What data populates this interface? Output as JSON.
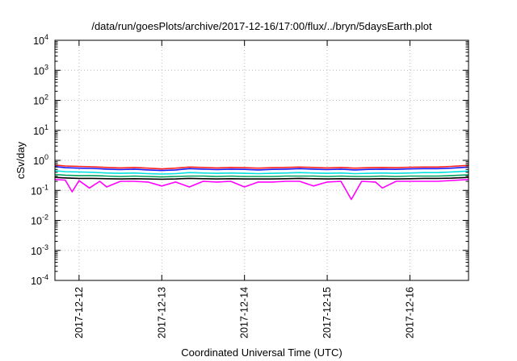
{
  "chart_data": {
    "type": "line",
    "title": "/data/run/goesPlots/archive/2017-12-16/17:00/flux/../bryn/5daysEarth.plot",
    "xlabel": "Coordinated Universal Time (UTC)",
    "ylabel": "cSv/day",
    "y_scale": "log",
    "ylim": [
      0.0001,
      10000
    ],
    "y_ticks": [
      {
        "value": 10000,
        "base": "10",
        "exp": "4"
      },
      {
        "value": 1000,
        "base": "10",
        "exp": "3"
      },
      {
        "value": 100,
        "base": "10",
        "exp": "2"
      },
      {
        "value": 10,
        "base": "10",
        "exp": "1"
      },
      {
        "value": 1,
        "base": "10",
        "exp": "0"
      },
      {
        "value": 0.1,
        "base": "10",
        "exp": "-1"
      },
      {
        "value": 0.01,
        "base": "10",
        "exp": "-2"
      },
      {
        "value": 0.001,
        "base": "10",
        "exp": "-3"
      },
      {
        "value": 0.0001,
        "base": "10",
        "exp": "-4"
      }
    ],
    "xlim": [
      "2017-12-11 17:00",
      "2017-12-16 17:00"
    ],
    "x_ticks": [
      {
        "value": "2017-12-12 00:00",
        "label": "2017-12-12"
      },
      {
        "value": "2017-12-13 00:00",
        "label": "2017-12-13"
      },
      {
        "value": "2017-12-14 00:00",
        "label": "2017-12-14"
      },
      {
        "value": "2017-12-15 00:00",
        "label": "2017-12-15"
      },
      {
        "value": "2017-12-16 00:00",
        "label": "2017-12-16"
      }
    ],
    "grid": true,
    "series": [
      {
        "color": "#ff2020",
        "values": [
          [
            "2017-12-11 17:00",
            0.7
          ],
          [
            "2017-12-11 20:00",
            0.65
          ],
          [
            "2017-12-12 00:00",
            0.63
          ],
          [
            "2017-12-12 04:00",
            0.61
          ],
          [
            "2017-12-12 08:00",
            0.58
          ],
          [
            "2017-12-12 12:00",
            0.56
          ],
          [
            "2017-12-12 16:00",
            0.58
          ],
          [
            "2017-12-12 20:00",
            0.55
          ],
          [
            "2017-12-13 00:00",
            0.52
          ],
          [
            "2017-12-13 04:00",
            0.55
          ],
          [
            "2017-12-13 08:00",
            0.6
          ],
          [
            "2017-12-13 12:00",
            0.58
          ],
          [
            "2017-12-13 16:00",
            0.56
          ],
          [
            "2017-12-13 20:00",
            0.58
          ],
          [
            "2017-12-14 00:00",
            0.57
          ],
          [
            "2017-12-14 04:00",
            0.55
          ],
          [
            "2017-12-14 08:00",
            0.57
          ],
          [
            "2017-12-14 12:00",
            0.58
          ],
          [
            "2017-12-14 16:00",
            0.6
          ],
          [
            "2017-12-14 20:00",
            0.58
          ],
          [
            "2017-12-15 00:00",
            0.56
          ],
          [
            "2017-12-15 04:00",
            0.58
          ],
          [
            "2017-12-15 08:00",
            0.55
          ],
          [
            "2017-12-15 12:00",
            0.57
          ],
          [
            "2017-12-15 16:00",
            0.58
          ],
          [
            "2017-12-15 20:00",
            0.57
          ],
          [
            "2017-12-16 00:00",
            0.59
          ],
          [
            "2017-12-16 04:00",
            0.6
          ],
          [
            "2017-12-16 08:00",
            0.6
          ],
          [
            "2017-12-16 12:00",
            0.63
          ],
          [
            "2017-12-16 17:00",
            0.68
          ]
        ]
      },
      {
        "color": "#1a1aff",
        "values": [
          [
            "2017-12-11 17:00",
            0.62
          ],
          [
            "2017-12-11 20:00",
            0.57
          ],
          [
            "2017-12-12 00:00",
            0.55
          ],
          [
            "2017-12-12 04:00",
            0.54
          ],
          [
            "2017-12-12 08:00",
            0.51
          ],
          [
            "2017-12-12 12:00",
            0.49
          ],
          [
            "2017-12-12 16:00",
            0.51
          ],
          [
            "2017-12-12 20:00",
            0.48
          ],
          [
            "2017-12-13 00:00",
            0.46
          ],
          [
            "2017-12-13 04:00",
            0.48
          ],
          [
            "2017-12-13 08:00",
            0.53
          ],
          [
            "2017-12-13 12:00",
            0.51
          ],
          [
            "2017-12-13 16:00",
            0.49
          ],
          [
            "2017-12-13 20:00",
            0.51
          ],
          [
            "2017-12-14 00:00",
            0.5
          ],
          [
            "2017-12-14 04:00",
            0.48
          ],
          [
            "2017-12-14 08:00",
            0.5
          ],
          [
            "2017-12-14 12:00",
            0.51
          ],
          [
            "2017-12-14 16:00",
            0.53
          ],
          [
            "2017-12-14 20:00",
            0.51
          ],
          [
            "2017-12-15 00:00",
            0.49
          ],
          [
            "2017-12-15 04:00",
            0.51
          ],
          [
            "2017-12-15 08:00",
            0.48
          ],
          [
            "2017-12-15 12:00",
            0.5
          ],
          [
            "2017-12-15 16:00",
            0.51
          ],
          [
            "2017-12-15 20:00",
            0.5
          ],
          [
            "2017-12-16 00:00",
            0.52
          ],
          [
            "2017-12-16 04:00",
            0.53
          ],
          [
            "2017-12-16 08:00",
            0.53
          ],
          [
            "2017-12-16 12:00",
            0.55
          ],
          [
            "2017-12-16 17:00",
            0.6
          ]
        ]
      },
      {
        "color": "#00e0e0",
        "values": [
          [
            "2017-12-11 17:00",
            0.45
          ],
          [
            "2017-12-11 20:00",
            0.42
          ],
          [
            "2017-12-12 00:00",
            0.41
          ],
          [
            "2017-12-12 04:00",
            0.4
          ],
          [
            "2017-12-12 08:00",
            0.38
          ],
          [
            "2017-12-12 12:00",
            0.37
          ],
          [
            "2017-12-12 16:00",
            0.38
          ],
          [
            "2017-12-12 20:00",
            0.36
          ],
          [
            "2017-12-13 00:00",
            0.35
          ],
          [
            "2017-12-13 04:00",
            0.36
          ],
          [
            "2017-12-13 08:00",
            0.39
          ],
          [
            "2017-12-13 12:00",
            0.38
          ],
          [
            "2017-12-13 16:00",
            0.37
          ],
          [
            "2017-12-13 20:00",
            0.38
          ],
          [
            "2017-12-14 00:00",
            0.37
          ],
          [
            "2017-12-14 04:00",
            0.36
          ],
          [
            "2017-12-14 08:00",
            0.37
          ],
          [
            "2017-12-14 12:00",
            0.38
          ],
          [
            "2017-12-14 16:00",
            0.39
          ],
          [
            "2017-12-14 20:00",
            0.38
          ],
          [
            "2017-12-15 00:00",
            0.37
          ],
          [
            "2017-12-15 04:00",
            0.38
          ],
          [
            "2017-12-15 08:00",
            0.36
          ],
          [
            "2017-12-15 12:00",
            0.37
          ],
          [
            "2017-12-15 16:00",
            0.38
          ],
          [
            "2017-12-15 20:00",
            0.37
          ],
          [
            "2017-12-16 00:00",
            0.38
          ],
          [
            "2017-12-16 04:00",
            0.39
          ],
          [
            "2017-12-16 08:00",
            0.39
          ],
          [
            "2017-12-16 12:00",
            0.41
          ],
          [
            "2017-12-16 17:00",
            0.44
          ]
        ]
      },
      {
        "color": "#00a060",
        "values": [
          [
            "2017-12-11 17:00",
            0.34
          ],
          [
            "2017-12-11 20:00",
            0.32
          ],
          [
            "2017-12-12 00:00",
            0.31
          ],
          [
            "2017-12-12 04:00",
            0.31
          ],
          [
            "2017-12-12 08:00",
            0.3
          ],
          [
            "2017-12-12 12:00",
            0.29
          ],
          [
            "2017-12-12 16:00",
            0.3
          ],
          [
            "2017-12-12 20:00",
            0.29
          ],
          [
            "2017-12-13 00:00",
            0.28
          ],
          [
            "2017-12-13 04:00",
            0.29
          ],
          [
            "2017-12-13 08:00",
            0.3
          ],
          [
            "2017-12-13 12:00",
            0.3
          ],
          [
            "2017-12-13 16:00",
            0.29
          ],
          [
            "2017-12-13 20:00",
            0.3
          ],
          [
            "2017-12-14 00:00",
            0.29
          ],
          [
            "2017-12-14 04:00",
            0.29
          ],
          [
            "2017-12-14 08:00",
            0.29
          ],
          [
            "2017-12-14 12:00",
            0.3
          ],
          [
            "2017-12-14 16:00",
            0.3
          ],
          [
            "2017-12-14 20:00",
            0.3
          ],
          [
            "2017-12-15 00:00",
            0.29
          ],
          [
            "2017-12-15 04:00",
            0.3
          ],
          [
            "2017-12-15 08:00",
            0.29
          ],
          [
            "2017-12-15 12:00",
            0.29
          ],
          [
            "2017-12-15 16:00",
            0.3
          ],
          [
            "2017-12-15 20:00",
            0.29
          ],
          [
            "2017-12-16 00:00",
            0.3
          ],
          [
            "2017-12-16 04:00",
            0.3
          ],
          [
            "2017-12-16 08:00",
            0.3
          ],
          [
            "2017-12-16 12:00",
            0.31
          ],
          [
            "2017-12-16 17:00",
            0.33
          ]
        ]
      },
      {
        "color": "#000000",
        "values": [
          [
            "2017-12-11 17:00",
            0.27
          ],
          [
            "2017-12-11 20:00",
            0.26
          ],
          [
            "2017-12-12 00:00",
            0.25
          ],
          [
            "2017-12-12 04:00",
            0.25
          ],
          [
            "2017-12-12 08:00",
            0.245
          ],
          [
            "2017-12-12 12:00",
            0.24
          ],
          [
            "2017-12-12 16:00",
            0.245
          ],
          [
            "2017-12-12 20:00",
            0.24
          ],
          [
            "2017-12-13 00:00",
            0.235
          ],
          [
            "2017-12-13 04:00",
            0.24
          ],
          [
            "2017-12-13 08:00",
            0.25
          ],
          [
            "2017-12-13 12:00",
            0.245
          ],
          [
            "2017-12-13 16:00",
            0.24
          ],
          [
            "2017-12-13 20:00",
            0.245
          ],
          [
            "2017-12-14 00:00",
            0.24
          ],
          [
            "2017-12-14 04:00",
            0.24
          ],
          [
            "2017-12-14 08:00",
            0.24
          ],
          [
            "2017-12-14 12:00",
            0.245
          ],
          [
            "2017-12-14 16:00",
            0.25
          ],
          [
            "2017-12-14 20:00",
            0.245
          ],
          [
            "2017-12-15 00:00",
            0.24
          ],
          [
            "2017-12-15 04:00",
            0.245
          ],
          [
            "2017-12-15 08:00",
            0.24
          ],
          [
            "2017-12-15 12:00",
            0.24
          ],
          [
            "2017-12-15 16:00",
            0.245
          ],
          [
            "2017-12-15 20:00",
            0.24
          ],
          [
            "2017-12-16 00:00",
            0.245
          ],
          [
            "2017-12-16 04:00",
            0.25
          ],
          [
            "2017-12-16 08:00",
            0.25
          ],
          [
            "2017-12-16 12:00",
            0.255
          ],
          [
            "2017-12-16 17:00",
            0.27
          ]
        ]
      },
      {
        "color": "#ff00ff",
        "values": [
          [
            "2017-12-11 17:00",
            0.23
          ],
          [
            "2017-12-11 20:00",
            0.22
          ],
          [
            "2017-12-11 22:00",
            0.09
          ],
          [
            "2017-12-12 00:00",
            0.21
          ],
          [
            "2017-12-12 03:00",
            0.12
          ],
          [
            "2017-12-12 06:00",
            0.2
          ],
          [
            "2017-12-12 08:00",
            0.13
          ],
          [
            "2017-12-12 12:00",
            0.2
          ],
          [
            "2017-12-12 16:00",
            0.2
          ],
          [
            "2017-12-12 20:00",
            0.19
          ],
          [
            "2017-12-13 00:00",
            0.14
          ],
          [
            "2017-12-13 04:00",
            0.19
          ],
          [
            "2017-12-13 08:00",
            0.13
          ],
          [
            "2017-12-13 12:00",
            0.2
          ],
          [
            "2017-12-13 16:00",
            0.19
          ],
          [
            "2017-12-13 20:00",
            0.2
          ],
          [
            "2017-12-14 00:00",
            0.13
          ],
          [
            "2017-12-14 04:00",
            0.19
          ],
          [
            "2017-12-14 08:00",
            0.19
          ],
          [
            "2017-12-14 12:00",
            0.2
          ],
          [
            "2017-12-14 16:00",
            0.2
          ],
          [
            "2017-12-14 20:00",
            0.14
          ],
          [
            "2017-12-15 00:00",
            0.19
          ],
          [
            "2017-12-15 04:00",
            0.2
          ],
          [
            "2017-12-15 07:00",
            0.05
          ],
          [
            "2017-12-15 10:00",
            0.2
          ],
          [
            "2017-12-15 14:00",
            0.19
          ],
          [
            "2017-12-15 16:00",
            0.12
          ],
          [
            "2017-12-15 20:00",
            0.2
          ],
          [
            "2017-12-16 00:00",
            0.2
          ],
          [
            "2017-12-16 08:00",
            0.2
          ],
          [
            "2017-12-16 17:00",
            0.23
          ]
        ]
      }
    ]
  }
}
